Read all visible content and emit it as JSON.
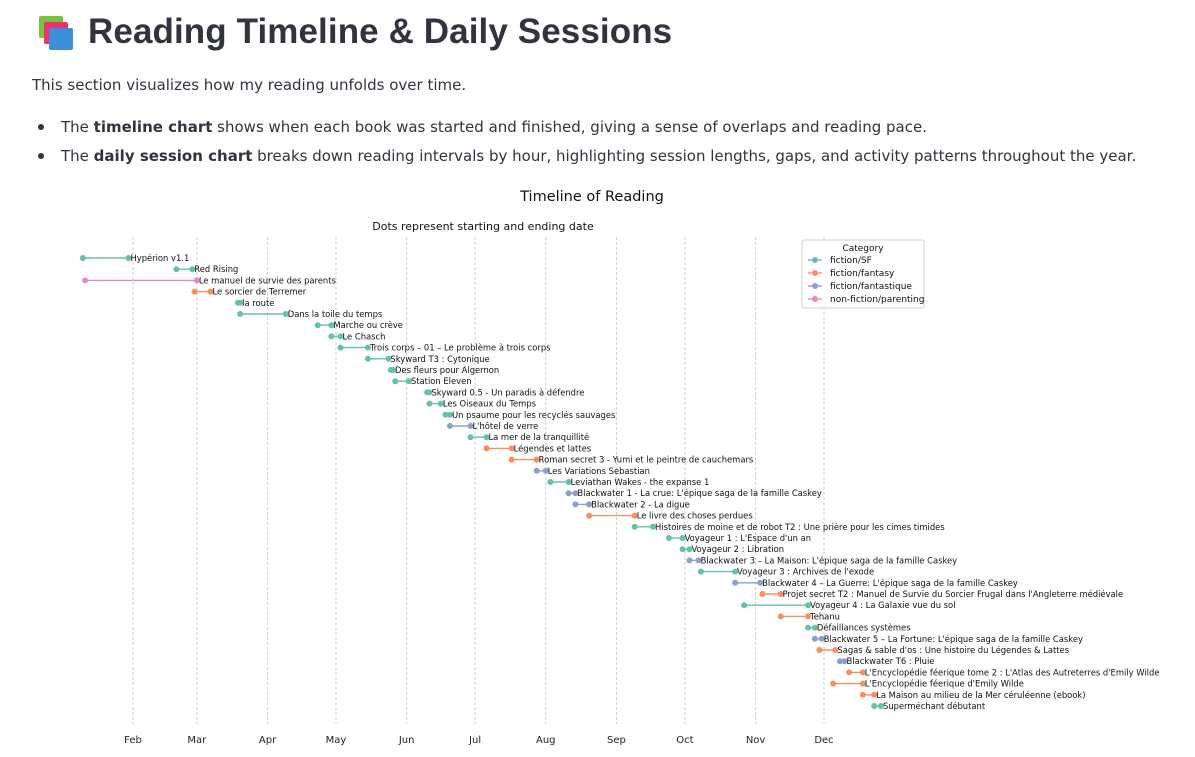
{
  "header": {
    "icon": "books-icon",
    "title": "Reading Timeline & Daily Sessions"
  },
  "intro": "This section visualizes how my reading unfolds over time.",
  "bullets": [
    {
      "pre": "The ",
      "bold": "timeline chart",
      "post": " shows when each book was started and finished, giving a sense of overlaps and reading pace."
    },
    {
      "pre": "The ",
      "bold": "daily session chart",
      "post": " breaks down reading intervals by hour, highlighting session lengths, gaps, and activity patterns throughout the year."
    }
  ],
  "chart_data": {
    "type": "scatter",
    "title": "Timeline of Reading",
    "subtitle": "Dots represent starting and ending date",
    "xlabel": "",
    "ylabel": "",
    "x_ticks": [
      "Feb",
      "Mar",
      "Apr",
      "May",
      "Jun",
      "Jul",
      "Aug",
      "Sep",
      "Oct",
      "Nov",
      "Dec"
    ],
    "xlim": [
      "Jan 8",
      "Dec 31"
    ],
    "grid": "vertical dashed",
    "legend": {
      "title": "Category",
      "placement": "top-right",
      "entries": [
        "fiction/SF",
        "fiction/fantasy",
        "fiction/fantastique",
        "non-fiction/parenting"
      ]
    },
    "colors": {
      "fiction/SF": "#66c2a5",
      "fiction/fantasy": "#fc8d62",
      "fiction/fantastique": "#8da0cb",
      "non-fiction/parenting": "#e78ac3"
    },
    "books": [
      {
        "title": "Hypérion v1.1",
        "category": "fiction/SF",
        "start": "Jan 10",
        "end": "Jan 30"
      },
      {
        "title": "Red Rising",
        "category": "fiction/SF",
        "start": "Feb 20",
        "end": "Feb 27"
      },
      {
        "title": "Le manuel de survie des parents",
        "category": "non-fiction/parenting",
        "start": "Jan 11",
        "end": "Mar 1"
      },
      {
        "title": "Le sorcier de Terremer",
        "category": "fiction/fantasy",
        "start": "Feb 28",
        "end": "Mar 7"
      },
      {
        "title": "la route",
        "category": "fiction/SF",
        "start": "Mar 19",
        "end": "Mar 20"
      },
      {
        "title": "Dans la toile du temps",
        "category": "fiction/SF",
        "start": "Mar 20",
        "end": "Apr 9"
      },
      {
        "title": "Marche ou crève",
        "category": "fiction/SF",
        "start": "Apr 23",
        "end": "Apr 29"
      },
      {
        "title": "Le Chasch",
        "category": "fiction/SF",
        "start": "Apr 29",
        "end": "May 3"
      },
      {
        "title": "Trois corps – 01 – Le problème à trois corps",
        "category": "fiction/SF",
        "start": "May 3",
        "end": "May 15"
      },
      {
        "title": "Skyward T3 : Cytonique",
        "category": "fiction/SF",
        "start": "May 15",
        "end": "May 24"
      },
      {
        "title": "Des fleurs pour Algernon",
        "category": "fiction/SF",
        "start": "May 25",
        "end": "May 26"
      },
      {
        "title": "Station Eleven",
        "category": "fiction/SF",
        "start": "May 27",
        "end": "Jun 2"
      },
      {
        "title": "Skyward 0.5 - Un paradis à défendre",
        "category": "fiction/SF",
        "start": "Jun 10",
        "end": "Jun 11"
      },
      {
        "title": "Les Oiseaux du Temps",
        "category": "fiction/SF",
        "start": "Jun 11",
        "end": "Jun 16"
      },
      {
        "title": "Un psaume pour les recyclés sauvages",
        "category": "fiction/SF",
        "start": "Jun 18",
        "end": "Jun 20"
      },
      {
        "title": "L'hôtel de verre",
        "category": "fiction/fantastique",
        "start": "Jun 20",
        "end": "Jun 29"
      },
      {
        "title": "La mer de la tranquillité",
        "category": "fiction/SF",
        "start": "Jun 29",
        "end": "Jul 6"
      },
      {
        "title": "Légendes et lattes",
        "category": "fiction/fantasy",
        "start": "Jul 6",
        "end": "Jul 17"
      },
      {
        "title": "Roman secret 3 - Yumi et le peintre de cauchemars",
        "category": "fiction/fantasy",
        "start": "Jul 17",
        "end": "Jul 28"
      },
      {
        "title": "Les Variations Sebastian",
        "category": "fiction/fantastique",
        "start": "Jul 28",
        "end": "Aug 1"
      },
      {
        "title": "Leviathan Wakes - the expanse 1",
        "category": "fiction/SF",
        "start": "Aug 3",
        "end": "Aug 11"
      },
      {
        "title": "Blackwater 1 - La crue: L'épique saga de la famille Caskey",
        "category": "fiction/fantastique",
        "start": "Aug 11",
        "end": "Aug 14"
      },
      {
        "title": "Blackwater 2 - La digue",
        "category": "fiction/fantastique",
        "start": "Aug 14",
        "end": "Aug 20"
      },
      {
        "title": "Le livre des choses perdues",
        "category": "fiction/fantasy",
        "start": "Aug 20",
        "end": "Sep 9"
      },
      {
        "title": "Histoires de moine et de robot T2 : Une prière pour les cimes timides",
        "category": "fiction/SF",
        "start": "Sep 9",
        "end": "Sep 17"
      },
      {
        "title": "Voyageur 1 : L'Espace d'un an",
        "category": "fiction/SF",
        "start": "Sep 24",
        "end": "Sep 30"
      },
      {
        "title": "Voyageur 2 : Libration",
        "category": "fiction/SF",
        "start": "Sep 30",
        "end": "Oct 3"
      },
      {
        "title": "Blackwater 3 – La Maison: L'épique saga de la famille Caskey",
        "category": "fiction/fantastique",
        "start": "Oct 3",
        "end": "Oct 7"
      },
      {
        "title": "Voyageur 3 : Archives de l'exode",
        "category": "fiction/SF",
        "start": "Oct 8",
        "end": "Oct 23"
      },
      {
        "title": "Blackwater 4 – La Guerre: L'épique saga de la famille Caskey",
        "category": "fiction/fantastique",
        "start": "Oct 23",
        "end": "Nov 3"
      },
      {
        "title": "Projet secret T2 : Manuel de Survie du Sorcier Frugal dans l'Angleterre médiévale",
        "category": "fiction/fantasy",
        "start": "Nov 4",
        "end": "Nov 12"
      },
      {
        "title": "Voyageur 4 : La Galaxie vue du sol",
        "category": "fiction/SF",
        "start": "Oct 27",
        "end": "Nov 24"
      },
      {
        "title": "Tehanu",
        "category": "fiction/fantasy",
        "start": "Nov 12",
        "end": "Nov 24"
      },
      {
        "title": "Défaillances systèmes",
        "category": "fiction/SF",
        "start": "Nov 24",
        "end": "Nov 27"
      },
      {
        "title": "Blackwater 5 – La Fortune: L'épique saga de la famille Caskey",
        "category": "fiction/fantastique",
        "start": "Nov 27",
        "end": "Nov 30"
      },
      {
        "title": "Sagas & sable d'os : Une histoire du Légendes & Lattes",
        "category": "fiction/fantasy",
        "start": "Nov 29",
        "end": "Dec 6"
      },
      {
        "title": "Blackwater T6 : Pluie",
        "category": "fiction/fantastique",
        "start": "Dec 8",
        "end": "Dec 10"
      },
      {
        "title": "L'Encyclopédie féerique tome 2 : L'Atlas des Autreterres d'Emily Wilde",
        "category": "fiction/fantasy",
        "start": "Dec 12",
        "end": "Dec 18"
      },
      {
        "title": "L'Encyclopédie féerique d'Emily Wilde",
        "category": "fiction/fantasy",
        "start": "Dec 5",
        "end": "Dec 18"
      },
      {
        "title": "La Maison au milieu de la Mer céruléenne (ebook)",
        "category": "fiction/fantasy",
        "start": "Dec 18",
        "end": "Dec 23"
      },
      {
        "title": "Superméchant débutant",
        "category": "fiction/SF",
        "start": "Dec 23",
        "end": "Dec 26"
      }
    ]
  }
}
